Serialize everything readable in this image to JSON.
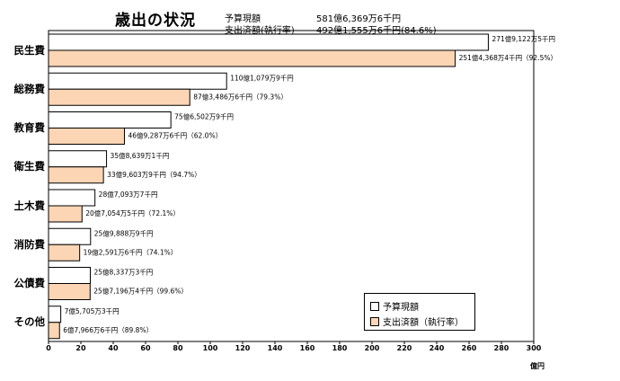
{
  "title": "歳出の状況",
  "summary": [
    {
      "label": "予算現額",
      "value": "581億6,369万6千円"
    },
    {
      "label": "支出済額(執行率)",
      "value": "492億1,555万6千円(84.6%)"
    }
  ],
  "unit_label": "億円",
  "legend": [
    {
      "label": "予算現額",
      "color": "#ffffff"
    },
    {
      "label": "支出済額（執行率）",
      "color": "#fcd5b4"
    }
  ],
  "colors": {
    "budget": "#ffffff",
    "expenditure": "#fcd5b4",
    "border": "#000000"
  },
  "chart_data": {
    "type": "bar",
    "orientation": "horizontal",
    "title": "歳出の状況",
    "xlabel": "億円",
    "xlim": [
      0,
      300
    ],
    "xticks": [
      0,
      20,
      40,
      60,
      80,
      100,
      120,
      140,
      160,
      180,
      200,
      220,
      240,
      260,
      280,
      300
    ],
    "categories": [
      "民生費",
      "総務費",
      "教育費",
      "衛生費",
      "土木費",
      "消防費",
      "公債費",
      "その他"
    ],
    "series": [
      {
        "name": "予算現額",
        "values": [
          271.91,
          110.11,
          75.65,
          35.86,
          28.71,
          25.99,
          25.83,
          7.57
        ],
        "labels": [
          "271億9,122万5千円",
          "110億1,079万9千円",
          "75億6,502万9千円",
          "35億8,639万1千円",
          "28億7,093万7千円",
          "25億9,888万9千円",
          "25億8,337万3千円",
          "7億5,705万3千円"
        ]
      },
      {
        "name": "支出済額（執行率）",
        "values": [
          251.44,
          87.35,
          46.93,
          33.96,
          20.71,
          19.26,
          25.72,
          6.8
        ],
        "labels": [
          "251億4,368万4千円（92.5%）",
          "87億3,486万6千円（79.3%）",
          "46億9,287万6千円（62.0%）",
          "33億9,603万9千円（94.7%）",
          "20億7,054万5千円（72.1%）",
          "19億2,591万6千円（74.1%）",
          "25億7,196万4千円（99.6%）",
          "6億7,966万6千円（89.8%）"
        ]
      }
    ],
    "grid": false,
    "legend_position": "bottom-right"
  }
}
